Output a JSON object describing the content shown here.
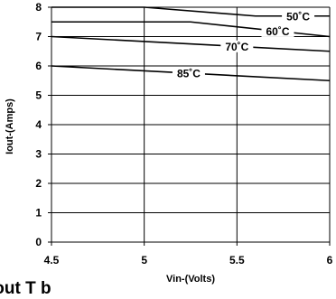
{
  "chart_data": {
    "type": "line",
    "xlabel": "Vin-(Volts)",
    "ylabel": "Iout-(Amps)",
    "xlim": [
      4.5,
      6
    ],
    "ylim": [
      0,
      8
    ],
    "xticks": [
      4.5,
      5,
      5.5,
      6
    ],
    "xtick_labels": [
      "4.5",
      "5",
      "5.5",
      "6"
    ],
    "yticks": [
      0,
      1,
      2,
      3,
      4,
      5,
      6,
      7,
      8
    ],
    "ytick_labels": [
      "0",
      "1",
      "2",
      "3",
      "4",
      "5",
      "6",
      "7",
      "8"
    ],
    "grid": true,
    "series": [
      {
        "name": "50˚C",
        "x": [
          4.5,
          5.0,
          5.6,
          6.0
        ],
        "y": [
          8.0,
          8.0,
          7.7,
          7.7
        ]
      },
      {
        "name": "60˚C",
        "x": [
          4.5,
          5.25,
          6.0
        ],
        "y": [
          7.5,
          7.5,
          7.0
        ]
      },
      {
        "name": "70˚C",
        "x": [
          4.5,
          6.0
        ],
        "y": [
          7.0,
          6.5
        ]
      },
      {
        "name": "85˚C",
        "x": [
          4.5,
          6.0
        ],
        "y": [
          6.0,
          5.5
        ]
      }
    ]
  },
  "footer": {
    "text": "Iout T b"
  }
}
